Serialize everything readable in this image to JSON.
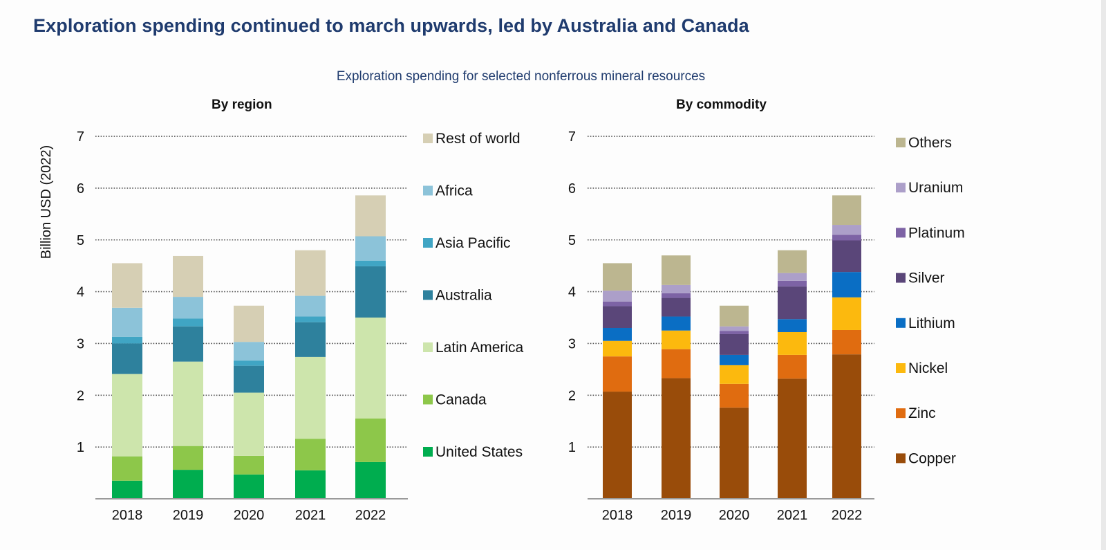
{
  "page": {
    "headline": "Exploration spending continued to march upwards, led by Australia and Canada",
    "subtitle": "Exploration spending for selected nonferrous mineral resources"
  },
  "chart_data": [
    {
      "type": "bar",
      "stacked": true,
      "title": "By region",
      "xlabel": "",
      "ylabel": "Billion USD (2022)",
      "ylim": [
        0,
        7
      ],
      "yticks": [
        1,
        2,
        3,
        4,
        5,
        6,
        7
      ],
      "grid": true,
      "legend": "right",
      "categories": [
        "2018",
        "2019",
        "2020",
        "2021",
        "2022"
      ],
      "series": [
        {
          "name": "United States",
          "color": "#00ad4f",
          "values": [
            0.35,
            0.56,
            0.47,
            0.55,
            0.71
          ]
        },
        {
          "name": "Canada",
          "color": "#8dc74a",
          "values": [
            0.47,
            0.46,
            0.36,
            0.61,
            0.84
          ]
        },
        {
          "name": "Latin America",
          "color": "#cde5ac",
          "values": [
            1.59,
            1.63,
            1.22,
            1.58,
            1.95
          ]
        },
        {
          "name": "Australia",
          "color": "#2e819d",
          "values": [
            0.59,
            0.68,
            0.52,
            0.67,
            0.99
          ]
        },
        {
          "name": "Asia Pacific",
          "color": "#40a5c4",
          "values": [
            0.13,
            0.15,
            0.1,
            0.11,
            0.11
          ]
        },
        {
          "name": "Africa",
          "color": "#8cc3d9",
          "values": [
            0.56,
            0.42,
            0.36,
            0.4,
            0.47
          ]
        },
        {
          "name": "Rest of world",
          "color": "#d6cfb4",
          "values": [
            0.86,
            0.79,
            0.7,
            0.88,
            0.79
          ]
        }
      ]
    },
    {
      "type": "bar",
      "stacked": true,
      "title": "By commodity",
      "xlabel": "",
      "ylabel": "",
      "ylim": [
        0,
        7
      ],
      "yticks": [
        1,
        2,
        3,
        4,
        5,
        6,
        7
      ],
      "grid": true,
      "legend": "right",
      "categories": [
        "2018",
        "2019",
        "2020",
        "2021",
        "2022"
      ],
      "series": [
        {
          "name": "Copper",
          "color": "#994c0a",
          "values": [
            2.07,
            2.33,
            1.76,
            2.32,
            2.79
          ]
        },
        {
          "name": "Zinc",
          "color": "#e06c10",
          "values": [
            0.68,
            0.56,
            0.46,
            0.46,
            0.47
          ]
        },
        {
          "name": "Nickel",
          "color": "#fcb90e",
          "values": [
            0.3,
            0.36,
            0.36,
            0.44,
            0.63
          ]
        },
        {
          "name": "Lithium",
          "color": "#0a6ec4",
          "values": [
            0.25,
            0.27,
            0.2,
            0.25,
            0.49
          ]
        },
        {
          "name": "Silver",
          "color": "#5a4679",
          "values": [
            0.42,
            0.36,
            0.4,
            0.63,
            0.61
          ]
        },
        {
          "name": "Platinum",
          "color": "#7d63a5",
          "values": [
            0.09,
            0.09,
            0.06,
            0.11,
            0.11
          ]
        },
        {
          "name": "Uranium",
          "color": "#ac9fc9",
          "values": [
            0.21,
            0.16,
            0.09,
            0.15,
            0.19
          ]
        },
        {
          "name": "Others",
          "color": "#bcb690",
          "values": [
            0.53,
            0.57,
            0.4,
            0.44,
            0.57
          ]
        }
      ]
    }
  ]
}
